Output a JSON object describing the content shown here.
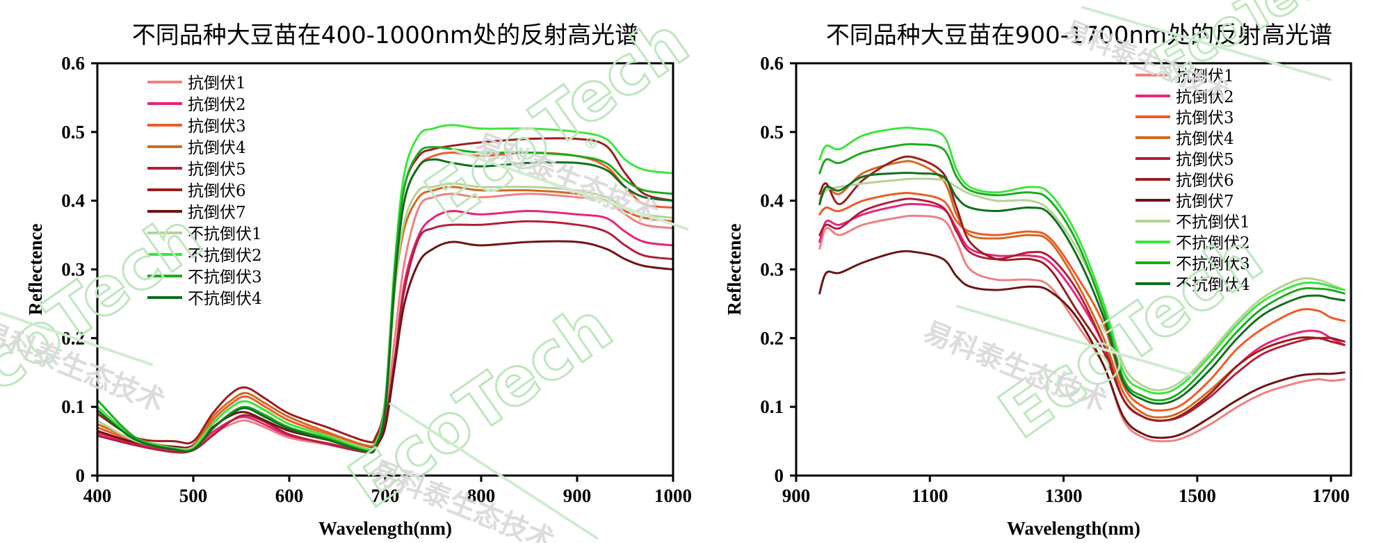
{
  "colors": {
    "抗倒伏1": "#f08080",
    "抗倒伏2": "#e8247a",
    "抗倒伏3": "#f05a28",
    "抗倒伏4": "#d2691e",
    "抗倒伏5": "#b41e3c",
    "抗倒伏6": "#9b1e1e",
    "抗倒伏7": "#6e1414",
    "不抗倒伏1": "#b4d296",
    "不抗倒伏2": "#3ce63c",
    "不抗倒伏3": "#1eaa1e",
    "不抗倒伏4": "#0f6e1e"
  },
  "watermark": {
    "brand": "EcoTech",
    "registered": "®",
    "cn": "易科泰生态技术"
  },
  "chart_data": [
    {
      "type": "line",
      "title": "不同品种大豆苗在400-1000nm处的反射高光谱",
      "xlabel": "Wavelength(nm)",
      "ylabel": "Reflectence",
      "xlim": [
        400,
        1000
      ],
      "ylim": [
        0,
        0.6
      ],
      "xticks": [
        "400",
        "500",
        "600",
        "700",
        "800",
        "900",
        "1000"
      ],
      "yticks": [
        "0",
        "0.1",
        "0.2",
        "0.3",
        "0.4",
        "0.5",
        "0.6"
      ],
      "grid": false,
      "legend_position": "top-left",
      "x": [
        400,
        440,
        480,
        500,
        520,
        540,
        555,
        575,
        600,
        640,
        680,
        690,
        700,
        710,
        720,
        735,
        750,
        770,
        800,
        850,
        900,
        930,
        950,
        970,
        1000
      ],
      "series": [
        {
          "name": "抗倒伏1",
          "values": [
            0.06,
            0.045,
            0.035,
            0.038,
            0.06,
            0.075,
            0.08,
            0.07,
            0.055,
            0.045,
            0.034,
            0.04,
            0.085,
            0.2,
            0.31,
            0.39,
            0.405,
            0.41,
            0.405,
            0.41,
            0.405,
            0.4,
            0.38,
            0.365,
            0.36
          ]
        },
        {
          "name": "抗倒伏2",
          "values": [
            0.062,
            0.046,
            0.036,
            0.04,
            0.063,
            0.08,
            0.085,
            0.074,
            0.058,
            0.047,
            0.035,
            0.041,
            0.08,
            0.17,
            0.28,
            0.35,
            0.375,
            0.385,
            0.38,
            0.385,
            0.38,
            0.375,
            0.355,
            0.34,
            0.335
          ]
        },
        {
          "name": "抗倒伏3",
          "values": [
            0.07,
            0.05,
            0.04,
            0.043,
            0.08,
            0.105,
            0.115,
            0.1,
            0.08,
            0.06,
            0.042,
            0.048,
            0.1,
            0.28,
            0.4,
            0.45,
            0.465,
            0.47,
            0.465,
            0.47,
            0.465,
            0.45,
            0.42,
            0.395,
            0.39
          ]
        },
        {
          "name": "抗倒伏4",
          "values": [
            0.075,
            0.052,
            0.042,
            0.045,
            0.085,
            0.11,
            0.12,
            0.105,
            0.085,
            0.063,
            0.044,
            0.05,
            0.105,
            0.27,
            0.36,
            0.405,
            0.415,
            0.42,
            0.415,
            0.415,
            0.41,
            0.4,
            0.385,
            0.375,
            0.37
          ]
        },
        {
          "name": "抗倒伏5",
          "values": [
            0.058,
            0.044,
            0.034,
            0.037,
            0.058,
            0.08,
            0.088,
            0.078,
            0.06,
            0.046,
            0.034,
            0.04,
            0.075,
            0.17,
            0.27,
            0.345,
            0.36,
            0.365,
            0.365,
            0.37,
            0.365,
            0.355,
            0.335,
            0.32,
            0.315
          ]
        },
        {
          "name": "抗倒伏6",
          "values": [
            0.09,
            0.055,
            0.05,
            0.05,
            0.09,
            0.12,
            0.128,
            0.112,
            0.09,
            0.07,
            0.05,
            0.056,
            0.11,
            0.3,
            0.42,
            0.465,
            0.475,
            0.48,
            0.485,
            0.49,
            0.49,
            0.48,
            0.44,
            0.41,
            0.4
          ]
        },
        {
          "name": "抗倒伏7",
          "values": [
            0.065,
            0.048,
            0.042,
            0.043,
            0.07,
            0.088,
            0.092,
            0.08,
            0.065,
            0.052,
            0.04,
            0.045,
            0.07,
            0.16,
            0.25,
            0.31,
            0.33,
            0.34,
            0.335,
            0.34,
            0.34,
            0.33,
            0.315,
            0.305,
            0.3
          ]
        },
        {
          "name": "不抗倒伏1",
          "values": [
            0.08,
            0.05,
            0.04,
            0.042,
            0.075,
            0.1,
            0.108,
            0.094,
            0.075,
            0.058,
            0.04,
            0.046,
            0.095,
            0.27,
            0.37,
            0.415,
            0.42,
            0.425,
            0.42,
            0.42,
            0.415,
            0.405,
            0.39,
            0.38,
            0.375
          ]
        },
        {
          "name": "不抗倒伏2",
          "values": [
            0.1,
            0.055,
            0.04,
            0.04,
            0.075,
            0.1,
            0.108,
            0.095,
            0.075,
            0.057,
            0.038,
            0.045,
            0.11,
            0.31,
            0.44,
            0.495,
            0.505,
            0.51,
            0.505,
            0.505,
            0.5,
            0.49,
            0.46,
            0.445,
            0.44
          ]
        },
        {
          "name": "不抗倒伏3",
          "values": [
            0.11,
            0.055,
            0.038,
            0.038,
            0.068,
            0.092,
            0.1,
            0.088,
            0.07,
            0.054,
            0.036,
            0.043,
            0.1,
            0.3,
            0.42,
            0.47,
            0.478,
            0.475,
            0.47,
            0.47,
            0.465,
            0.455,
            0.43,
            0.415,
            0.41
          ]
        },
        {
          "name": "不抗倒伏4",
          "values": [
            0.095,
            0.052,
            0.038,
            0.038,
            0.068,
            0.09,
            0.098,
            0.085,
            0.068,
            0.052,
            0.035,
            0.042,
            0.095,
            0.28,
            0.4,
            0.45,
            0.46,
            0.455,
            0.45,
            0.455,
            0.455,
            0.445,
            0.42,
            0.405,
            0.4
          ]
        }
      ]
    },
    {
      "type": "line",
      "title": "不同品种大豆苗在900-1700nm处的反射高光谱",
      "xlabel": "Wavelength(nm)",
      "ylabel": "Reflectence",
      "xlim": [
        900,
        1730
      ],
      "ylim": [
        0,
        0.6
      ],
      "xticks": [
        "900",
        "1100",
        "1300",
        "1500",
        "1700"
      ],
      "yticks": [
        "0",
        "0.1",
        "0.2",
        "0.3",
        "0.4",
        "0.5",
        "0.6"
      ],
      "grid": false,
      "legend_position": "top-right",
      "x": [
        935,
        945,
        965,
        1000,
        1050,
        1080,
        1120,
        1140,
        1160,
        1200,
        1250,
        1280,
        1320,
        1360,
        1390,
        1420,
        1450,
        1480,
        1520,
        1560,
        1600,
        1650,
        1680,
        1700,
        1720
      ],
      "series": [
        {
          "name": "抗倒伏1",
          "values": [
            0.33,
            0.36,
            0.35,
            0.365,
            0.375,
            0.378,
            0.372,
            0.34,
            0.3,
            0.285,
            0.285,
            0.275,
            0.22,
            0.16,
            0.08,
            0.055,
            0.05,
            0.055,
            0.075,
            0.1,
            0.12,
            0.135,
            0.14,
            0.138,
            0.14
          ]
        },
        {
          "name": "抗倒伏2",
          "values": [
            0.34,
            0.37,
            0.365,
            0.38,
            0.392,
            0.395,
            0.388,
            0.36,
            0.33,
            0.32,
            0.32,
            0.31,
            0.26,
            0.19,
            0.11,
            0.085,
            0.08,
            0.09,
            0.12,
            0.16,
            0.19,
            0.208,
            0.21,
            0.2,
            0.19
          ]
        },
        {
          "name": "抗倒伏3",
          "values": [
            0.38,
            0.39,
            0.385,
            0.4,
            0.41,
            0.41,
            0.4,
            0.37,
            0.355,
            0.35,
            0.355,
            0.345,
            0.29,
            0.22,
            0.13,
            0.1,
            0.095,
            0.105,
            0.14,
            0.185,
            0.215,
            0.24,
            0.24,
            0.23,
            0.225
          ]
        },
        {
          "name": "抗倒伏4",
          "values": [
            0.4,
            0.42,
            0.41,
            0.44,
            0.455,
            0.455,
            0.43,
            0.38,
            0.35,
            0.345,
            0.35,
            0.34,
            0.28,
            0.2,
            0.12,
            0.09,
            0.085,
            0.095,
            0.125,
            0.16,
            0.185,
            0.2,
            0.2,
            0.195,
            0.19
          ]
        },
        {
          "name": "抗倒伏5",
          "values": [
            0.35,
            0.365,
            0.36,
            0.385,
            0.4,
            0.402,
            0.39,
            0.355,
            0.325,
            0.315,
            0.325,
            0.318,
            0.27,
            0.19,
            0.11,
            0.085,
            0.08,
            0.088,
            0.115,
            0.15,
            0.178,
            0.195,
            0.2,
            0.195,
            0.19
          ]
        },
        {
          "name": "抗倒伏6",
          "values": [
            0.41,
            0.425,
            0.395,
            0.43,
            0.46,
            0.462,
            0.44,
            0.39,
            0.34,
            0.315,
            0.315,
            0.3,
            0.24,
            0.18,
            0.11,
            0.085,
            0.08,
            0.09,
            0.12,
            0.16,
            0.185,
            0.2,
            0.2,
            0.2,
            0.195
          ]
        },
        {
          "name": "抗倒伏7",
          "values": [
            0.265,
            0.295,
            0.295,
            0.31,
            0.325,
            0.325,
            0.315,
            0.29,
            0.275,
            0.27,
            0.275,
            0.268,
            0.23,
            0.16,
            0.085,
            0.06,
            0.055,
            0.062,
            0.085,
            0.11,
            0.13,
            0.145,
            0.148,
            0.148,
            0.15
          ]
        },
        {
          "name": "不抗倒伏1",
          "values": [
            0.4,
            0.415,
            0.42,
            0.425,
            0.43,
            0.432,
            0.43,
            0.42,
            0.41,
            0.4,
            0.4,
            0.385,
            0.33,
            0.25,
            0.16,
            0.13,
            0.125,
            0.14,
            0.18,
            0.225,
            0.26,
            0.285,
            0.285,
            0.278,
            0.27
          ]
        },
        {
          "name": "不抗倒伏2",
          "values": [
            0.46,
            0.48,
            0.475,
            0.495,
            0.505,
            0.505,
            0.495,
            0.445,
            0.42,
            0.412,
            0.42,
            0.41,
            0.35,
            0.25,
            0.15,
            0.125,
            0.12,
            0.135,
            0.175,
            0.22,
            0.255,
            0.278,
            0.28,
            0.275,
            0.27
          ]
        },
        {
          "name": "不抗倒伏3",
          "values": [
            0.44,
            0.46,
            0.455,
            0.47,
            0.48,
            0.482,
            0.475,
            0.435,
            0.415,
            0.408,
            0.412,
            0.4,
            0.34,
            0.24,
            0.14,
            0.115,
            0.11,
            0.125,
            0.165,
            0.21,
            0.245,
            0.27,
            0.272,
            0.27,
            0.265
          ]
        },
        {
          "name": "不抗倒伏4",
          "values": [
            0.395,
            0.42,
            0.415,
            0.435,
            0.44,
            0.44,
            0.435,
            0.405,
            0.39,
            0.385,
            0.39,
            0.38,
            0.32,
            0.23,
            0.135,
            0.11,
            0.105,
            0.118,
            0.155,
            0.2,
            0.235,
            0.258,
            0.262,
            0.258,
            0.255
          ]
        }
      ]
    }
  ]
}
